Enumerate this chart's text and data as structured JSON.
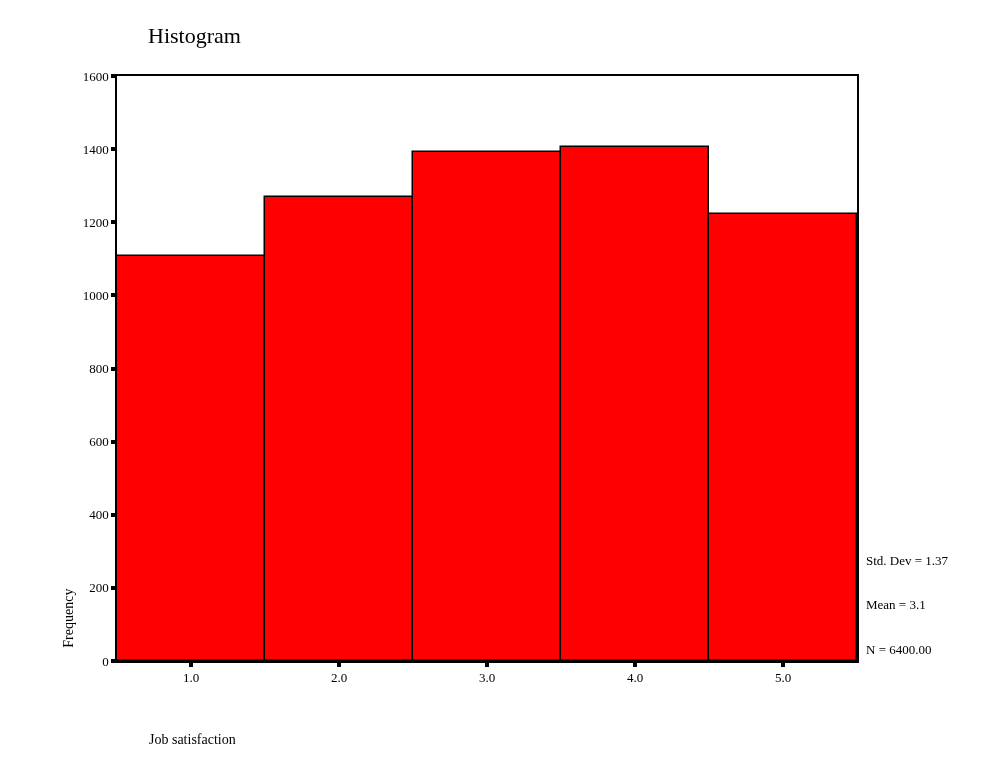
{
  "chart_data": {
    "type": "histogram",
    "title": "Histogram",
    "xlabel": "Job satisfaction",
    "ylabel": "Frequency",
    "bins": [
      0.5,
      1.5,
      2.5,
      3.5,
      4.5,
      5.5
    ],
    "values": [
      1108,
      1270,
      1391,
      1407,
      1222
    ],
    "color": "#ff0000",
    "xlim": [
      0.5,
      5.5
    ],
    "xticks": [
      {
        "value": 1,
        "label": "1.0"
      },
      {
        "value": 2,
        "label": "2.0"
      },
      {
        "value": 3,
        "label": "3.0"
      },
      {
        "value": 4,
        "label": "4.0"
      },
      {
        "value": 5,
        "label": "5.0"
      }
    ],
    "ylim": [
      0,
      1600
    ],
    "yticks": [
      0,
      200,
      400,
      600,
      800,
      1000,
      1200,
      1400,
      1600
    ],
    "annotations": [
      "Std. Dev = 1.37",
      "Mean = 3.1",
      "N = 6400.00"
    ]
  }
}
